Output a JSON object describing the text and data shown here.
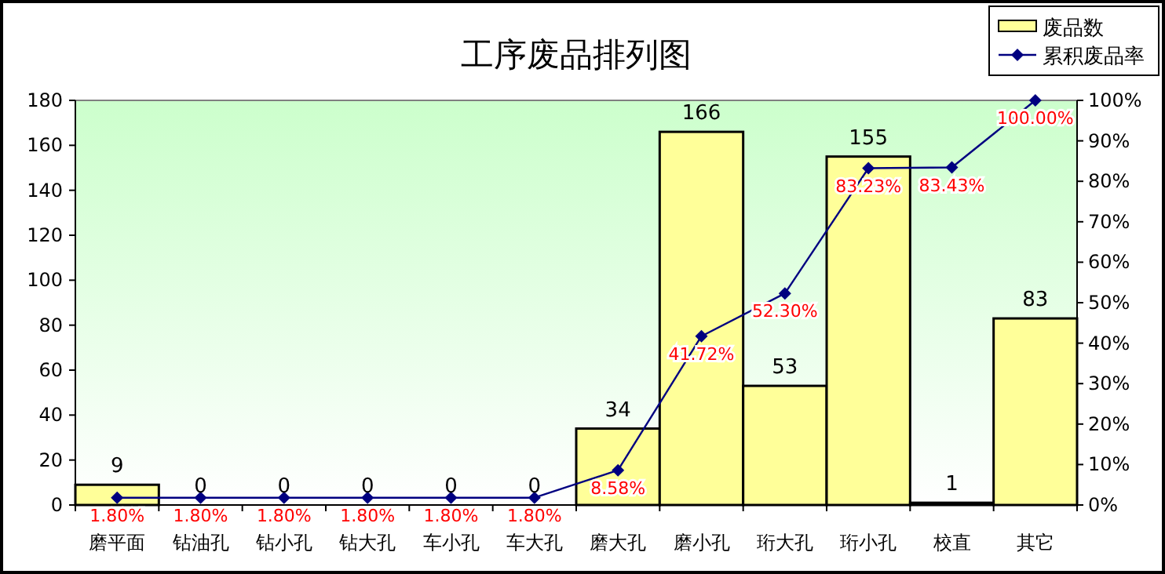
{
  "chart_data": {
    "type": "bar",
    "title": "工序废品排列图",
    "categories": [
      "磨平面",
      "钻油孔",
      "钻小孔",
      "钻大孔",
      "车小孔",
      "车大孔",
      "磨大孔",
      "磨小孔",
      "珩大孔",
      "珩小孔",
      "校直",
      "其它"
    ],
    "series": [
      {
        "name": "废品数",
        "color": "#ffff99",
        "values": [
          9,
          0,
          0,
          0,
          0,
          0,
          34,
          166,
          53,
          155,
          1,
          83
        ],
        "value_labels": [
          "9",
          "0",
          "0",
          "0",
          "0",
          "0",
          "34",
          "166",
          "53",
          "155",
          "1",
          "83"
        ]
      },
      {
        "name": "累积废品率",
        "type": "line",
        "axis": "y2",
        "color": "#000080",
        "marker": "diamond",
        "values": [
          1.8,
          1.8,
          1.8,
          1.8,
          1.8,
          1.8,
          8.58,
          41.72,
          52.3,
          83.23,
          83.43,
          100.0
        ],
        "value_labels": [
          "1.80%",
          "1.80%",
          "1.80%",
          "1.80%",
          "1.80%",
          "1.80%",
          "8.58%",
          "41.72%",
          "52.30%",
          "83.23%",
          "83.43%",
          "100.00%"
        ]
      }
    ],
    "ylim": [
      0,
      180
    ],
    "yticks": [
      0,
      20,
      40,
      60,
      80,
      100,
      120,
      140,
      160,
      180
    ],
    "y2lim": [
      0,
      100
    ],
    "y2ticks": [
      {
        "value": 0,
        "label": "0%"
      },
      {
        "value": 10,
        "label": "10%"
      },
      {
        "value": 20,
        "label": "20%"
      },
      {
        "value": 30,
        "label": "30%"
      },
      {
        "value": 40,
        "label": "40%"
      },
      {
        "value": 50,
        "label": "50%"
      },
      {
        "value": 60,
        "label": "60%"
      },
      {
        "value": 70,
        "label": "70%"
      },
      {
        "value": 80,
        "label": "80%"
      },
      {
        "value": 90,
        "label": "90%"
      },
      {
        "value": 100,
        "label": "100%"
      }
    ],
    "legend": "top right"
  }
}
